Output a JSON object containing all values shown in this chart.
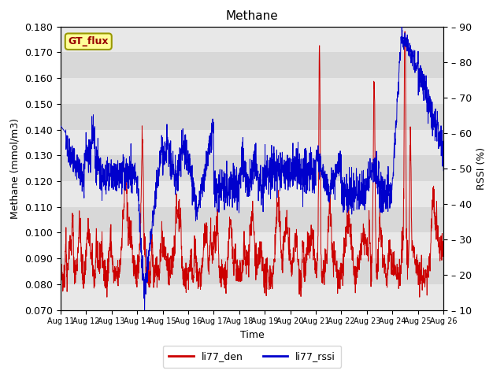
{
  "title": "Methane",
  "ylabel_left": "Methane (mmol/m3)",
  "ylabel_right": "RSSI (%)",
  "xlabel": "Time",
  "ylim_left": [
    0.07,
    0.18
  ],
  "ylim_right": [
    10,
    90
  ],
  "yticks_left": [
    0.07,
    0.08,
    0.09,
    0.1,
    0.11,
    0.12,
    0.13,
    0.14,
    0.15,
    0.16,
    0.17,
    0.18
  ],
  "yticks_right": [
    10,
    20,
    30,
    40,
    50,
    60,
    70,
    80,
    90
  ],
  "xtick_labels": [
    "Aug 11",
    "Aug 12",
    "Aug 13",
    "Aug 14",
    "Aug 15",
    "Aug 16",
    "Aug 17",
    "Aug 18",
    "Aug 19",
    "Aug 20",
    "Aug 21",
    "Aug 22",
    "Aug 23",
    "Aug 24",
    "Aug 25",
    "Aug 26"
  ],
  "line1_color": "#cc0000",
  "line2_color": "#0000cc",
  "line1_label": "li77_den",
  "line2_label": "li77_rssi",
  "gt_flux_label": "GT_flux",
  "gt_flux_bg": "#ffff99",
  "gt_flux_border": "#999900",
  "gt_flux_text_color": "#990000",
  "band_colors": [
    "#e8e8e8",
    "#d8d8d8"
  ],
  "fig_facecolor": "#ffffff",
  "axes_facecolor": "#e8e8e8"
}
